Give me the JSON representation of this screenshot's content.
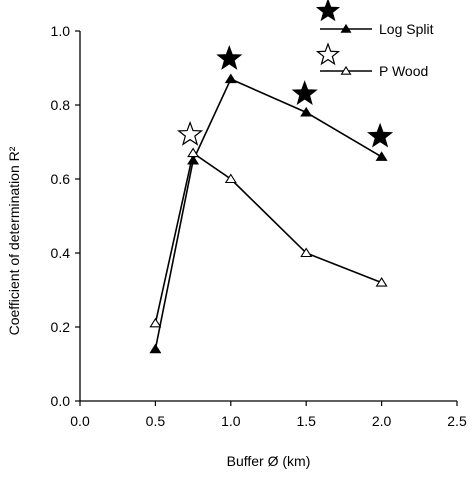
{
  "chart_data": {
    "type": "line",
    "xlabel": "Buffer Ø (km)",
    "ylabel": "Coefficient of determination R²",
    "xlim": [
      0.0,
      2.5
    ],
    "ylim": [
      0.0,
      1.0
    ],
    "xticks": [
      "0.0",
      "0.5",
      "1.0",
      "1.5",
      "2.0",
      "2.5"
    ],
    "yticks": [
      "0.0",
      "0.2",
      "0.4",
      "0.6",
      "0.8",
      "1.0"
    ],
    "grid": false,
    "legend_position": "top-right",
    "series": [
      {
        "name": "Log Split",
        "marker": "filled-triangle",
        "x": [
          0.5,
          0.75,
          1.0,
          1.5,
          2.0
        ],
        "y": [
          0.14,
          0.65,
          0.87,
          0.78,
          0.66
        ]
      },
      {
        "name": "P Wood",
        "marker": "open-triangle",
        "x": [
          0.5,
          0.75,
          1.0,
          1.5,
          2.0
        ],
        "y": [
          0.21,
          0.67,
          0.6,
          0.4,
          0.32
        ]
      }
    ],
    "annotations": [
      {
        "type": "filled-star",
        "x": 0.99,
        "y": 0.925
      },
      {
        "type": "filled-star",
        "x": 1.49,
        "y": 0.83
      },
      {
        "type": "filled-star",
        "x": 1.99,
        "y": 0.715
      },
      {
        "type": "open-star",
        "x": 0.73,
        "y": 0.72
      }
    ],
    "colors": {
      "line": "#000000",
      "background": "#ffffff"
    }
  }
}
